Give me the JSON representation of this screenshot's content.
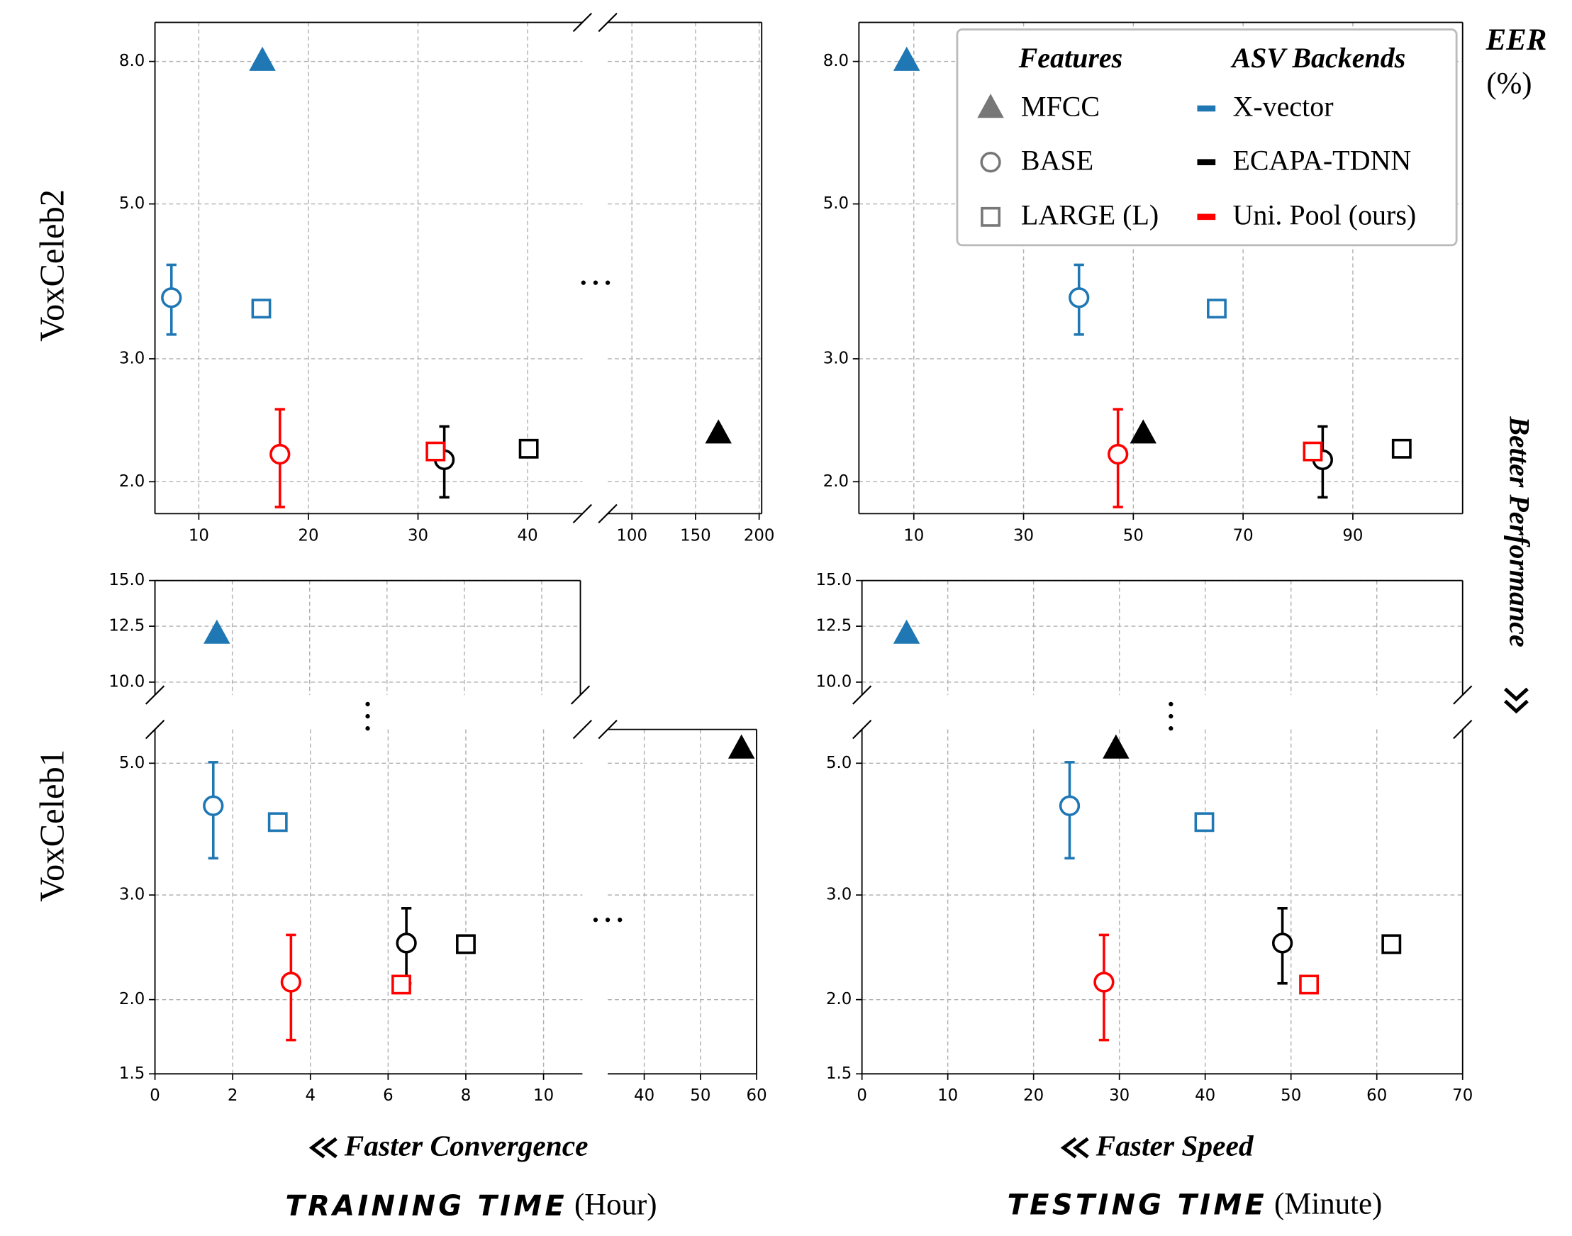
{
  "row_labels": [
    "VoxCeleb2",
    "VoxCeleb1"
  ],
  "metric": "EER",
  "metric_unit": "(%)",
  "y_hint": "Better Performance",
  "x_hints": [
    "Faster Convergence",
    "Faster Speed"
  ],
  "x_titles": [
    "TRAINING TIME",
    "TESTING TIME"
  ],
  "x_units": [
    "(Hour)",
    "(Minute)"
  ],
  "legend": {
    "features_title": "Features",
    "features": [
      {
        "label": "MFCC",
        "marker": "triangle"
      },
      {
        "label": "BASE",
        "marker": "circle"
      },
      {
        "label": "LARGE (L)",
        "marker": "square"
      }
    ],
    "backends_title": "ASV Backends",
    "backends": [
      {
        "label": "X-vector",
        "color": "#1f77b4"
      },
      {
        "label": "ECAPA-TDNN",
        "color": "#000000"
      },
      {
        "label": "Uni. Pool (ours)",
        "color": "#ff0000"
      }
    ]
  },
  "chart_data": [
    {
      "type": "scatter",
      "log_y": true,
      "grid": true,
      "xlim": [
        6,
        45
      ],
      "ylim": [
        1.8,
        9.1
      ],
      "xticks": [
        10,
        20,
        30,
        40
      ],
      "yticks": [
        {
          "value": 2,
          "label": "2.0"
        },
        {
          "value": 3,
          "label": "3.0"
        },
        {
          "value": 5,
          "label": "5.0"
        },
        {
          "value": 8,
          "label": "8.0"
        }
      ],
      "series": [
        {
          "marker": "triangle",
          "color": "#1f77b4",
          "x": [
            15.8
          ],
          "values": [
            8.0
          ]
        },
        {
          "marker": "circle",
          "color": "#1f77b4",
          "x": [
            7.5
          ],
          "values": [
            3.67
          ],
          "errors": [
            0.42
          ]
        },
        {
          "marker": "square",
          "color": "#1f77b4",
          "x": [
            15.7
          ],
          "values": [
            3.54
          ]
        },
        {
          "marker": "circle",
          "color": "#000000",
          "x": [
            32.4
          ],
          "values": [
            2.15
          ],
          "errors": [
            0.25
          ]
        },
        {
          "marker": "square",
          "color": "#000000",
          "x": [
            40.1
          ],
          "values": [
            2.23
          ]
        },
        {
          "marker": "circle",
          "color": "#ff0000",
          "x": [
            17.4
          ],
          "values": [
            2.19
          ],
          "errors": [
            0.35
          ]
        },
        {
          "marker": "square",
          "color": "#ff0000",
          "x": [
            31.6
          ],
          "values": [
            2.21
          ]
        }
      ]
    },
    {
      "type": "scatter",
      "log_y": true,
      "grid": true,
      "ytick_labels": false,
      "xlim": [
        81,
        202
      ],
      "ylim": [
        1.8,
        9.1
      ],
      "xticks": [
        100,
        150,
        200
      ],
      "yticks": [
        2,
        3,
        5,
        8
      ],
      "series": [
        {
          "marker": "triangle",
          "color": "#000000",
          "x": [
            168
          ],
          "values": [
            2.34
          ]
        }
      ]
    },
    {
      "type": "scatter",
      "log_y": true,
      "grid": true,
      "xlim": [
        0,
        110
      ],
      "ylim": [
        1.8,
        9.1
      ],
      "xticks": [
        10,
        30,
        50,
        70,
        90
      ],
      "yticks": [
        {
          "value": 2,
          "label": "2.0"
        },
        {
          "value": 3,
          "label": "3.0"
        },
        {
          "value": 5,
          "label": "5.0"
        },
        {
          "value": 8,
          "label": "8.0"
        }
      ],
      "series": [
        {
          "marker": "triangle",
          "color": "#1f77b4",
          "x": [
            8.7
          ],
          "values": [
            8.0
          ]
        },
        {
          "marker": "circle",
          "color": "#1f77b4",
          "x": [
            40.1
          ],
          "values": [
            3.67
          ],
          "errors": [
            0.42
          ]
        },
        {
          "marker": "square",
          "color": "#1f77b4",
          "x": [
            65.2
          ],
          "values": [
            3.54
          ]
        },
        {
          "marker": "triangle",
          "color": "#000000",
          "x": [
            51.8
          ],
          "values": [
            2.34
          ]
        },
        {
          "marker": "circle",
          "color": "#000000",
          "x": [
            84.5
          ],
          "values": [
            2.15
          ],
          "errors": [
            0.25
          ]
        },
        {
          "marker": "square",
          "color": "#000000",
          "x": [
            98.9
          ],
          "values": [
            2.23
          ]
        },
        {
          "marker": "circle",
          "color": "#ff0000",
          "x": [
            47.2
          ],
          "values": [
            2.19
          ],
          "errors": [
            0.35
          ]
        },
        {
          "marker": "square",
          "color": "#ff0000",
          "x": [
            82.7
          ],
          "values": [
            2.21
          ]
        }
      ]
    },
    {
      "type": "scatter",
      "log_y": true,
      "grid": true,
      "xtick_labels": false,
      "xlim": [
        0,
        11
      ],
      "ylim": [
        9.5,
        15
      ],
      "xticks": [
        0,
        2,
        4,
        6,
        8,
        10
      ],
      "yticks": [
        {
          "value": 10,
          "label": "10.0"
        },
        12.5,
        {
          "value": 15,
          "label": "15.0"
        }
      ],
      "series": [
        {
          "marker": "triangle",
          "color": "#1f77b4",
          "x": [
            1.6
          ],
          "values": [
            12.1
          ]
        }
      ]
    },
    {
      "type": "scatter",
      "log_y": true,
      "grid": true,
      "xlim": [
        0,
        11
      ],
      "ylim": [
        1.5,
        5.7
      ],
      "xticks": [
        0,
        2,
        4,
        6,
        8,
        10
      ],
      "yticks": [
        1.5,
        {
          "value": 2,
          "label": "2.0"
        },
        {
          "value": 3,
          "label": "3.0"
        },
        {
          "value": 5,
          "label": "5.0"
        }
      ],
      "series": [
        {
          "marker": "circle",
          "color": "#1f77b4",
          "x": [
            1.5
          ],
          "values": [
            4.24
          ],
          "errors": [
            0.78
          ]
        },
        {
          "marker": "square",
          "color": "#1f77b4",
          "x": [
            3.16
          ],
          "values": [
            3.98
          ]
        },
        {
          "marker": "circle",
          "color": "#000000",
          "x": [
            6.47
          ],
          "values": [
            2.49
          ],
          "errors": [
            0.36
          ]
        },
        {
          "marker": "square",
          "color": "#000000",
          "x": [
            8.0
          ],
          "values": [
            2.48
          ]
        },
        {
          "marker": "circle",
          "color": "#ff0000",
          "x": [
            3.5
          ],
          "values": [
            2.14
          ],
          "errors": [
            0.43
          ]
        },
        {
          "marker": "square",
          "color": "#ff0000",
          "x": [
            6.34
          ],
          "values": [
            2.12
          ]
        }
      ]
    },
    {
      "type": "scatter",
      "log_y": true,
      "grid": true,
      "ytick_labels": false,
      "xlim": [
        33.5,
        60
      ],
      "ylim": [
        1.5,
        5.7
      ],
      "xticks": [
        40,
        50,
        60
      ],
      "yticks": [
        2,
        3,
        5
      ],
      "series": [
        {
          "marker": "triangle",
          "color": "#000000",
          "x": [
            57.3
          ],
          "values": [
            5.28
          ]
        }
      ]
    },
    {
      "type": "scatter",
      "log_y": true,
      "grid": true,
      "xtick_labels": false,
      "xlim": [
        0,
        70
      ],
      "ylim": [
        9.5,
        15
      ],
      "xticks": [
        0,
        10,
        20,
        30,
        40,
        50,
        60,
        70
      ],
      "yticks": [
        {
          "value": 10,
          "label": "10.0"
        },
        12.5,
        {
          "value": 15,
          "label": "15.0"
        }
      ],
      "series": [
        {
          "marker": "triangle",
          "color": "#1f77b4",
          "x": [
            5.2
          ],
          "values": [
            12.1
          ]
        }
      ]
    },
    {
      "type": "scatter",
      "log_y": true,
      "grid": true,
      "xlim": [
        0,
        70
      ],
      "ylim": [
        1.5,
        5.7
      ],
      "xticks": [
        0,
        10,
        20,
        30,
        40,
        50,
        60,
        70
      ],
      "yticks": [
        1.5,
        {
          "value": 2,
          "label": "2.0"
        },
        {
          "value": 3,
          "label": "3.0"
        },
        {
          "value": 5,
          "label": "5.0"
        }
      ],
      "series": [
        {
          "marker": "circle",
          "color": "#1f77b4",
          "x": [
            24.2
          ],
          "values": [
            4.24
          ],
          "errors": [
            0.78
          ]
        },
        {
          "marker": "square",
          "color": "#1f77b4",
          "x": [
            39.9
          ],
          "values": [
            3.98
          ]
        },
        {
          "marker": "triangle",
          "color": "#000000",
          "x": [
            29.6
          ],
          "values": [
            5.28
          ]
        },
        {
          "marker": "circle",
          "color": "#000000",
          "x": [
            49.0
          ],
          "values": [
            2.49
          ],
          "errors": [
            0.36
          ]
        },
        {
          "marker": "square",
          "color": "#000000",
          "x": [
            61.7
          ],
          "values": [
            2.48
          ]
        },
        {
          "marker": "circle",
          "color": "#ff0000",
          "x": [
            28.2
          ],
          "values": [
            2.14
          ],
          "errors": [
            0.43
          ]
        },
        {
          "marker": "square",
          "color": "#ff0000",
          "x": [
            52.1
          ],
          "values": [
            2.12
          ]
        }
      ]
    }
  ]
}
